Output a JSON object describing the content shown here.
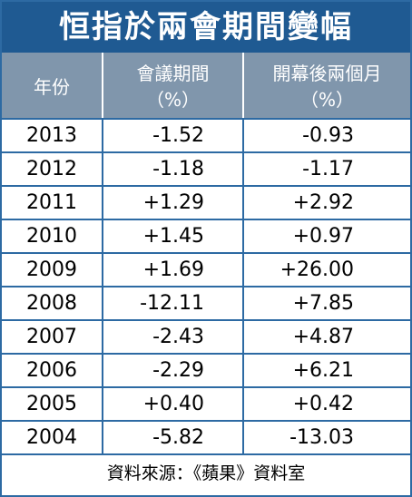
{
  "header": {
    "title": "恒指於兩會期間變幅"
  },
  "table": {
    "columns": [
      [
        "年份"
      ],
      [
        "會議期間",
        "（%）"
      ],
      [
        "開幕後兩個月",
        "（%）"
      ]
    ],
    "rows": [
      [
        "2013",
        "-1.52",
        "-0.93"
      ],
      [
        "2012",
        "-1.18",
        "-1.17"
      ],
      [
        "2011",
        "+1.29",
        "+2.92"
      ],
      [
        "2010",
        "+1.45",
        "+0.97"
      ],
      [
        "2009",
        "+1.69",
        "+26.00"
      ],
      [
        "2008",
        "-12.11",
        "+7.85"
      ],
      [
        "2007",
        "-2.43",
        "+4.87"
      ],
      [
        "2006",
        "-2.29",
        "+6.21"
      ],
      [
        "2005",
        "+0.40",
        "+0.42"
      ],
      [
        "2004",
        "-5.82",
        "-13.03"
      ]
    ]
  },
  "footer": {
    "source": "資料來源：《蘋果》資料室"
  }
}
